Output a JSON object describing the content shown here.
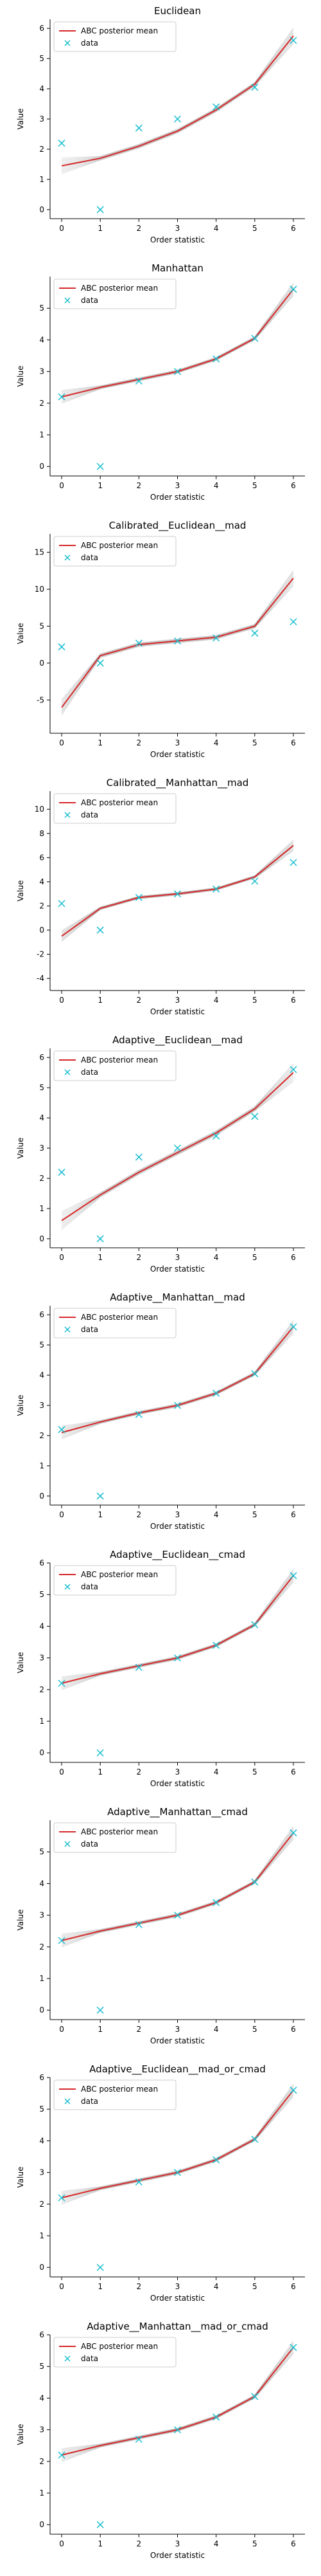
{
  "chart_data": [
    {
      "type": "line",
      "title": "Euclidean",
      "xlabel": "Order statistic",
      "ylabel": "Value",
      "x": [
        0,
        1,
        2,
        3,
        4,
        5,
        6
      ],
      "xticks": [
        "0",
        "1",
        "2",
        "3",
        "4",
        "5",
        "6"
      ],
      "ylim": [
        -0.3,
        6.3
      ],
      "yticks": [
        "0",
        "1",
        "2",
        "3",
        "4",
        "5",
        "6"
      ],
      "grid": false,
      "legend": {
        "position": "top-left",
        "entries": [
          "ABC posterior mean",
          "data"
        ]
      },
      "series": [
        {
          "name": "ABC posterior mean",
          "kind": "line",
          "color": "#d62728",
          "values": [
            1.45,
            1.7,
            2.1,
            2.6,
            3.3,
            4.15,
            5.75
          ]
        },
        {
          "name": "data",
          "kind": "marker",
          "marker": "x",
          "color": "#17becf",
          "values": [
            2.2,
            0.0,
            2.7,
            3.0,
            3.4,
            4.05,
            5.6
          ]
        }
      ]
    },
    {
      "type": "line",
      "title": "Manhattan",
      "xlabel": "Order statistic",
      "ylabel": "Value",
      "x": [
        0,
        1,
        2,
        3,
        4,
        5,
        6
      ],
      "xticks": [
        "0",
        "1",
        "2",
        "3",
        "4",
        "5",
        "6"
      ],
      "ylim": [
        -0.3,
        6.0
      ],
      "yticks": [
        "0",
        "1",
        "2",
        "3",
        "4",
        "5"
      ],
      "grid": false,
      "legend": {
        "position": "top-left",
        "entries": [
          "ABC posterior mean",
          "data"
        ]
      },
      "series": [
        {
          "name": "ABC posterior mean",
          "kind": "line",
          "color": "#d62728",
          "values": [
            2.2,
            2.5,
            2.75,
            3.0,
            3.4,
            4.05,
            5.6
          ]
        },
        {
          "name": "data",
          "kind": "marker",
          "marker": "x",
          "color": "#17becf",
          "values": [
            2.2,
            0.0,
            2.7,
            3.0,
            3.4,
            4.05,
            5.6
          ]
        }
      ]
    },
    {
      "type": "line",
      "title": "Calibrated__Euclidean__mad",
      "xlabel": "Order statistic",
      "ylabel": "Value",
      "x": [
        0,
        1,
        2,
        3,
        4,
        5,
        6
      ],
      "xticks": [
        "0",
        "1",
        "2",
        "3",
        "4",
        "5",
        "6"
      ],
      "ylim": [
        -9.5,
        17.5
      ],
      "yticks": [
        "-5",
        "0",
        "5",
        "10",
        "15"
      ],
      "grid": false,
      "legend": {
        "position": "top-left",
        "entries": [
          "ABC posterior mean",
          "data"
        ]
      },
      "series": [
        {
          "name": "ABC posterior mean",
          "kind": "line",
          "color": "#d62728",
          "values": [
            -6.0,
            1.0,
            2.5,
            3.0,
            3.5,
            5.0,
            11.5
          ]
        },
        {
          "name": "data",
          "kind": "marker",
          "marker": "x",
          "color": "#17becf",
          "values": [
            2.2,
            0.0,
            2.7,
            3.0,
            3.4,
            4.05,
            5.6
          ]
        }
      ]
    },
    {
      "type": "line",
      "title": "Calibrated__Manhattan__mad",
      "xlabel": "Order statistic",
      "ylabel": "Value",
      "x": [
        0,
        1,
        2,
        3,
        4,
        5,
        6
      ],
      "xticks": [
        "0",
        "1",
        "2",
        "3",
        "4",
        "5",
        "6"
      ],
      "ylim": [
        -5.0,
        11.5
      ],
      "yticks": [
        "-4",
        "-2",
        "0",
        "2",
        "4",
        "6",
        "8",
        "10"
      ],
      "grid": false,
      "legend": {
        "position": "top-left",
        "entries": [
          "ABC posterior mean",
          "data"
        ]
      },
      "series": [
        {
          "name": "ABC posterior mean",
          "kind": "line",
          "color": "#d62728",
          "values": [
            -0.5,
            1.8,
            2.7,
            3.0,
            3.4,
            4.4,
            7.0
          ]
        },
        {
          "name": "data",
          "kind": "marker",
          "marker": "x",
          "color": "#17becf",
          "values": [
            2.2,
            0.0,
            2.7,
            3.0,
            3.4,
            4.05,
            5.6
          ]
        }
      ]
    },
    {
      "type": "line",
      "title": "Adaptive__Euclidean__mad",
      "xlabel": "Order statistic",
      "ylabel": "Value",
      "x": [
        0,
        1,
        2,
        3,
        4,
        5,
        6
      ],
      "xticks": [
        "0",
        "1",
        "2",
        "3",
        "4",
        "5",
        "6"
      ],
      "ylim": [
        -0.3,
        6.3
      ],
      "yticks": [
        "0",
        "1",
        "2",
        "3",
        "4",
        "5",
        "6"
      ],
      "grid": false,
      "legend": {
        "position": "top-left",
        "entries": [
          "ABC posterior mean",
          "data"
        ]
      },
      "series": [
        {
          "name": "ABC posterior mean",
          "kind": "line",
          "color": "#d62728",
          "values": [
            0.6,
            1.45,
            2.2,
            2.85,
            3.5,
            4.3,
            5.5
          ]
        },
        {
          "name": "data",
          "kind": "marker",
          "marker": "x",
          "color": "#17becf",
          "values": [
            2.2,
            0.0,
            2.7,
            3.0,
            3.4,
            4.05,
            5.6
          ]
        }
      ]
    },
    {
      "type": "line",
      "title": "Adaptive__Manhattan__mad",
      "xlabel": "Order statistic",
      "ylabel": "Value",
      "x": [
        0,
        1,
        2,
        3,
        4,
        5,
        6
      ],
      "xticks": [
        "0",
        "1",
        "2",
        "3",
        "4",
        "5",
        "6"
      ],
      "ylim": [
        -0.3,
        6.3
      ],
      "yticks": [
        "0",
        "1",
        "2",
        "3",
        "4",
        "5",
        "6"
      ],
      "grid": false,
      "legend": {
        "position": "top-left",
        "entries": [
          "ABC posterior mean",
          "data"
        ]
      },
      "series": [
        {
          "name": "ABC posterior mean",
          "kind": "line",
          "color": "#d62728",
          "values": [
            2.1,
            2.45,
            2.75,
            3.0,
            3.4,
            4.05,
            5.6
          ]
        },
        {
          "name": "data",
          "kind": "marker",
          "marker": "x",
          "color": "#17becf",
          "values": [
            2.2,
            0.0,
            2.7,
            3.0,
            3.4,
            4.05,
            5.6
          ]
        }
      ]
    },
    {
      "type": "line",
      "title": "Adaptive__Euclidean__cmad",
      "xlabel": "Order statistic",
      "ylabel": "Value",
      "x": [
        0,
        1,
        2,
        3,
        4,
        5,
        6
      ],
      "xticks": [
        "0",
        "1",
        "2",
        "3",
        "4",
        "5",
        "6"
      ],
      "ylim": [
        -0.3,
        6.0
      ],
      "yticks": [
        "0",
        "1",
        "2",
        "3",
        "4",
        "5",
        "6"
      ],
      "grid": false,
      "legend": {
        "position": "top-left",
        "entries": [
          "ABC posterior mean",
          "data"
        ]
      },
      "series": [
        {
          "name": "ABC posterior mean",
          "kind": "line",
          "color": "#d62728",
          "values": [
            2.2,
            2.5,
            2.75,
            3.0,
            3.4,
            4.05,
            5.6
          ]
        },
        {
          "name": "data",
          "kind": "marker",
          "marker": "x",
          "color": "#17becf",
          "values": [
            2.2,
            0.0,
            2.7,
            3.0,
            3.4,
            4.05,
            5.6
          ]
        }
      ]
    },
    {
      "type": "line",
      "title": "Adaptive__Manhattan__cmad",
      "xlabel": "Order statistic",
      "ylabel": "Value",
      "x": [
        0,
        1,
        2,
        3,
        4,
        5,
        6
      ],
      "xticks": [
        "0",
        "1",
        "2",
        "3",
        "4",
        "5",
        "6"
      ],
      "ylim": [
        -0.3,
        6.0
      ],
      "yticks": [
        "0",
        "1",
        "2",
        "3",
        "4",
        "5"
      ],
      "grid": false,
      "legend": {
        "position": "top-left",
        "entries": [
          "ABC posterior mean",
          "data"
        ]
      },
      "series": [
        {
          "name": "ABC posterior mean",
          "kind": "line",
          "color": "#d62728",
          "values": [
            2.2,
            2.5,
            2.75,
            3.0,
            3.4,
            4.05,
            5.6
          ]
        },
        {
          "name": "data",
          "kind": "marker",
          "marker": "x",
          "color": "#17becf",
          "values": [
            2.2,
            0.0,
            2.7,
            3.0,
            3.4,
            4.05,
            5.6
          ]
        }
      ]
    },
    {
      "type": "line",
      "title": "Adaptive__Euclidean__mad_or_cmad",
      "xlabel": "Order statistic",
      "ylabel": "Value",
      "x": [
        0,
        1,
        2,
        3,
        4,
        5,
        6
      ],
      "xticks": [
        "0",
        "1",
        "2",
        "3",
        "4",
        "5",
        "6"
      ],
      "ylim": [
        -0.3,
        6.0
      ],
      "yticks": [
        "0",
        "1",
        "2",
        "3",
        "4",
        "5",
        "6"
      ],
      "grid": false,
      "legend": {
        "position": "top-left",
        "entries": [
          "ABC posterior mean",
          "data"
        ]
      },
      "series": [
        {
          "name": "ABC posterior mean",
          "kind": "line",
          "color": "#d62728",
          "values": [
            2.2,
            2.5,
            2.75,
            3.0,
            3.4,
            4.05,
            5.6
          ]
        },
        {
          "name": "data",
          "kind": "marker",
          "marker": "x",
          "color": "#17becf",
          "values": [
            2.2,
            0.0,
            2.7,
            3.0,
            3.4,
            4.05,
            5.6
          ]
        }
      ]
    },
    {
      "type": "line",
      "title": "Adaptive__Manhattan__mad_or_cmad",
      "xlabel": "Order statistic",
      "ylabel": "Value",
      "x": [
        0,
        1,
        2,
        3,
        4,
        5,
        6
      ],
      "xticks": [
        "0",
        "1",
        "2",
        "3",
        "4",
        "5",
        "6"
      ],
      "ylim": [
        -0.3,
        6.0
      ],
      "yticks": [
        "0",
        "1",
        "2",
        "3",
        "4",
        "5",
        "6"
      ],
      "grid": false,
      "legend": {
        "position": "top-left",
        "entries": [
          "ABC posterior mean",
          "data"
        ]
      },
      "series": [
        {
          "name": "ABC posterior mean",
          "kind": "line",
          "color": "#d62728",
          "values": [
            2.2,
            2.5,
            2.75,
            3.0,
            3.4,
            4.05,
            5.6
          ]
        },
        {
          "name": "data",
          "kind": "marker",
          "marker": "x",
          "color": "#17becf",
          "values": [
            2.2,
            0.0,
            2.7,
            3.0,
            3.4,
            4.05,
            5.6
          ]
        }
      ]
    }
  ]
}
